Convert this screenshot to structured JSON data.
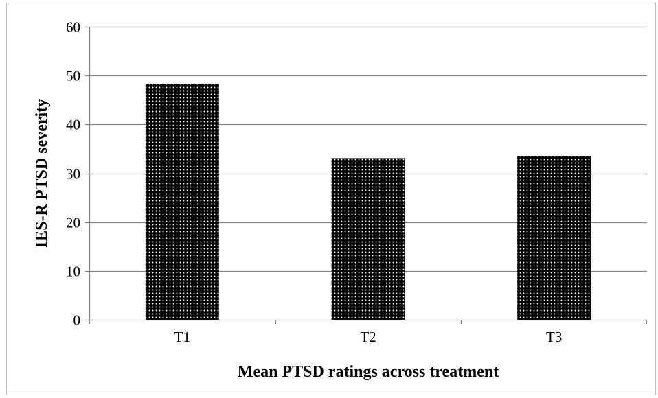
{
  "chart_data": {
    "type": "bar",
    "categories": [
      "T1",
      "T2",
      "T3"
    ],
    "values": [
      48.3,
      33.1,
      33.5
    ],
    "title": "",
    "xlabel": "Mean PTSD ratings across treatment",
    "ylabel": "IES-R PTSD severity",
    "ylim": [
      0,
      60
    ],
    "yticks": [
      0,
      10,
      20,
      30,
      40,
      50,
      60
    ],
    "grid": true,
    "legend": "none",
    "bar_fill": "dotted",
    "colors": {
      "bar": "#000000",
      "dots": "#ffffff",
      "gridline": "#868686",
      "axis": "#868686",
      "frame": "#bfbfbf"
    }
  }
}
